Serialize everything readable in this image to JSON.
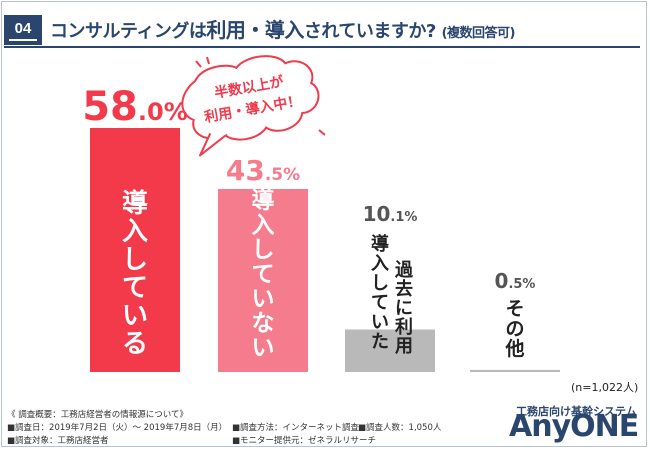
{
  "question": {
    "number": "04",
    "title_a": "コンサルティングは",
    "title_b": "利用・導入",
    "title_c": "されていますか?",
    "title_note": "(複数回答可)"
  },
  "bubble": {
    "line1": "半数以上が",
    "line2": "利用・導入中！"
  },
  "chart_data": {
    "type": "bar",
    "title": "コンサルティングは利用・導入されていますか?",
    "categories": [
      "導入している",
      "導入していない",
      "過去に利用 導入していた",
      "その他"
    ],
    "values": [
      58.0,
      43.5,
      10.1,
      0.5
    ],
    "value_labels": [
      {
        "int": "58",
        "dec": ".0%"
      },
      {
        "int": "43",
        "dec": ".5%"
      },
      {
        "int": "10",
        "dec": ".1%"
      },
      {
        "int": "0",
        "dec": ".5%"
      }
    ],
    "ylim": [
      0,
      58
    ],
    "unit": "%",
    "colors": [
      "#f23a4b",
      "#f47c8c",
      "#b9b9b9",
      "#b9b9b9"
    ],
    "value_colors": [
      "#f23a4b",
      "#f47c8c",
      "#555555",
      "#555555"
    ],
    "bar_text_colors": [
      "#ffffff",
      "#ffffff",
      "#222222",
      "#222222"
    ]
  },
  "sample_size": "(n=1,022人)",
  "survey": {
    "overview": "《 調査概要：工務店経営者の情報源について》",
    "date": "■調査日：2019年7月2日（火）～ 2019年7月8日（月）",
    "method": "■調査方法：インターネット調査",
    "people": "■調査人数：1,050人",
    "target": "■調査対象：工務店経営者",
    "provider": "■モニター提供元：ゼネラルリサーチ"
  },
  "brand": {
    "subtitle": "工務店向け基幹システム",
    "logo": "AnyONE"
  }
}
